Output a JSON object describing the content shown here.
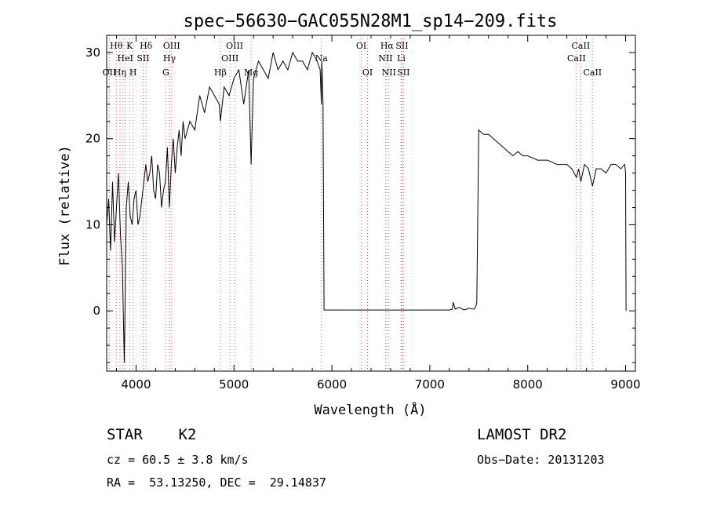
{
  "chart_data": {
    "type": "line",
    "title": "spec−56630−GAC055N28M1_sp14−209.fits",
    "xlabel": "Wavelength (Å)",
    "ylabel": "Flux (relative)",
    "xlim": [
      3700,
      9100
    ],
    "ylim": [
      -7,
      32
    ],
    "xticks": [
      4000,
      5000,
      6000,
      7000,
      8000,
      9000
    ],
    "yticks": [
      0,
      10,
      20,
      30
    ],
    "grid": false,
    "series": [
      {
        "color": "#000000",
        "x": [
          3700,
          3720,
          3740,
          3760,
          3780,
          3800,
          3820,
          3840,
          3860,
          3880,
          3900,
          3920,
          3940,
          3960,
          3980,
          4000,
          4020,
          4040,
          4060,
          4080,
          4100,
          4120,
          4140,
          4160,
          4180,
          4200,
          4220,
          4240,
          4260,
          4280,
          4300,
          4320,
          4340,
          4360,
          4380,
          4400,
          4420,
          4440,
          4460,
          4480,
          4500,
          4550,
          4600,
          4650,
          4700,
          4750,
          4800,
          4850,
          4861,
          4900,
          4950,
          5000,
          5050,
          5100,
          5150,
          5175,
          5200,
          5250,
          5300,
          5350,
          5400,
          5450,
          5500,
          5550,
          5600,
          5650,
          5700,
          5750,
          5800,
          5850,
          5880,
          5893,
          5896,
          5900,
          5910,
          5920,
          6000,
          6500,
          7000,
          7200,
          7230,
          7240,
          7260,
          7300,
          7350,
          7400,
          7450,
          7470,
          7480,
          7500,
          7550,
          7600,
          7650,
          7700,
          7750,
          7800,
          7850,
          7900,
          7950,
          8000,
          8100,
          8200,
          8300,
          8400,
          8450,
          8498,
          8520,
          8542,
          8580,
          8620,
          8662,
          8700,
          8750,
          8800,
          8850,
          8900,
          8950,
          8990,
          9000,
          9005
        ],
        "y": [
          10,
          13,
          7,
          15,
          8,
          12,
          16,
          9,
          5,
          -6,
          12,
          15,
          11,
          10,
          13,
          14,
          10,
          11,
          13,
          15,
          17,
          15,
          16,
          18,
          14,
          13,
          17,
          16,
          12,
          14,
          15,
          19,
          12,
          17,
          20,
          16,
          19,
          21,
          18,
          22,
          20,
          22,
          21,
          25,
          23,
          26,
          25,
          24,
          22,
          26,
          25,
          27,
          28,
          24,
          28,
          17,
          27,
          29,
          28,
          27,
          30,
          28,
          29,
          28,
          30,
          29,
          29,
          28,
          30,
          29,
          28,
          24,
          29,
          28,
          24,
          0.1,
          0.1,
          0.1,
          0.1,
          0.1,
          0.2,
          1.0,
          0.2,
          0.4,
          0.1,
          0.3,
          0.2,
          0.5,
          1.0,
          21,
          20.5,
          20.5,
          20,
          19.5,
          19,
          18.5,
          18,
          18.5,
          18,
          18,
          17.5,
          17.5,
          17,
          17,
          16.5,
          15.5,
          16.5,
          15,
          17,
          16.5,
          14.5,
          16.5,
          16.5,
          16,
          17,
          17,
          16.5,
          17,
          16,
          0
        ]
      }
    ],
    "lines": [
      {
        "wl": 3727,
        "label": "OII",
        "row": 3
      },
      {
        "wl": 3798,
        "label": "Hθ",
        "row": 1
      },
      {
        "wl": 3835,
        "label": "Hη",
        "row": 3
      },
      {
        "wl": 3869,
        "label": "",
        "row": 0
      },
      {
        "wl": 3889,
        "label": "HeI",
        "row": 2
      },
      {
        "wl": 3934,
        "label": "K",
        "row": 1
      },
      {
        "wl": 3970,
        "label": "H",
        "row": 3
      },
      {
        "wl": 4072,
        "label": "SII",
        "row": 2
      },
      {
        "wl": 4102,
        "label": "Hδ",
        "row": 1
      },
      {
        "wl": 4304,
        "label": "G",
        "row": 3
      },
      {
        "wl": 4341,
        "label": "Hγ",
        "row": 2
      },
      {
        "wl": 4363,
        "label": "OIII",
        "row": 1
      },
      {
        "wl": 4861,
        "label": "Hβ",
        "row": 3
      },
      {
        "wl": 4959,
        "label": "OIII",
        "row": 2
      },
      {
        "wl": 5007,
        "label": "OIII",
        "row": 1
      },
      {
        "wl": 5175,
        "label": "Mg",
        "row": 3
      },
      {
        "wl": 5893,
        "label": "Na",
        "row": 2
      },
      {
        "wl": 6300,
        "label": "OI",
        "row": 1
      },
      {
        "wl": 6364,
        "label": "OI",
        "row": 3
      },
      {
        "wl": 6548,
        "label": "NII",
        "row": 2
      },
      {
        "wl": 6563,
        "label": "Hα",
        "row": 1
      },
      {
        "wl": 6583,
        "label": "NII",
        "row": 3
      },
      {
        "wl": 6708,
        "label": "Li",
        "row": 2
      },
      {
        "wl": 6716,
        "label": "SII",
        "row": 1
      },
      {
        "wl": 6731,
        "label": "SII",
        "row": 3
      },
      {
        "wl": 8498,
        "label": "CaII",
        "row": 2
      },
      {
        "wl": 8542,
        "label": "CaII",
        "row": 1
      },
      {
        "wl": 8662,
        "label": "CaII",
        "row": 3
      }
    ]
  },
  "info": {
    "object_class": "STAR    K2",
    "survey": "LAMOST DR2",
    "redshift": "cz = 60.5 ± 3.8 km/s",
    "obs_date": "Obs−Date: 20131203",
    "coords": "RA =  53.13250, DEC =  29.14837"
  },
  "colors": {
    "spectrum": "#000000",
    "line_markers": "#e06060",
    "axes": "#000000"
  }
}
